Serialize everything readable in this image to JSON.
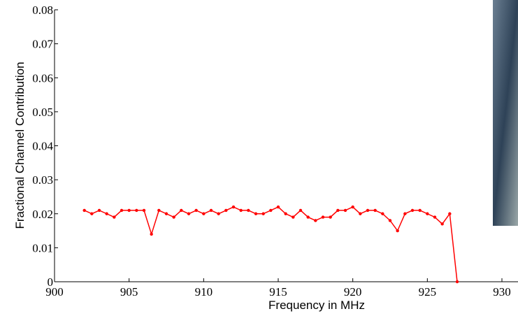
{
  "chart_data": {
    "type": "line",
    "x_label": "Frequency in MHz",
    "y_label": "Fractional Channel Contribution",
    "x": [
      902,
      902.5,
      903,
      903.5,
      904,
      904.5,
      905,
      905.5,
      906,
      906.5,
      907,
      907.5,
      908,
      908.5,
      909,
      909.5,
      910,
      910.5,
      911,
      911.5,
      912,
      912.5,
      913,
      913.5,
      914,
      914.5,
      915,
      915.5,
      916,
      916.5,
      917,
      917.5,
      918,
      918.5,
      919,
      919.5,
      920,
      920.5,
      921,
      921.5,
      922,
      922.5,
      923,
      923.5,
      924,
      924.5,
      925,
      925.5,
      926,
      926.5,
      927
    ],
    "series": [
      {
        "color": "#ff0000",
        "values": [
          0.021,
          0.02,
          0.021,
          0.02,
          0.019,
          0.021,
          0.021,
          0.021,
          0.021,
          0.014,
          0.021,
          0.02,
          0.019,
          0.021,
          0.02,
          0.021,
          0.02,
          0.021,
          0.02,
          0.021,
          0.022,
          0.021,
          0.021,
          0.02,
          0.02,
          0.021,
          0.022,
          0.02,
          0.019,
          0.021,
          0.019,
          0.018,
          0.019,
          0.019,
          0.021,
          0.021,
          0.022,
          0.02,
          0.021,
          0.021,
          0.02,
          0.018,
          0.015,
          0.02,
          0.021,
          0.021,
          0.02,
          0.019,
          0.017,
          0.02,
          0
        ]
      }
    ],
    "xlim": [
      900,
      930
    ],
    "xticks": [
      900,
      905,
      910,
      915,
      920,
      925,
      930
    ],
    "ylim": [
      0,
      0.08
    ],
    "yticks": [
      0,
      0.01,
      0.02,
      0.03,
      0.04,
      0.05,
      0.06,
      0.07,
      0.08
    ],
    "grid": false
  }
}
